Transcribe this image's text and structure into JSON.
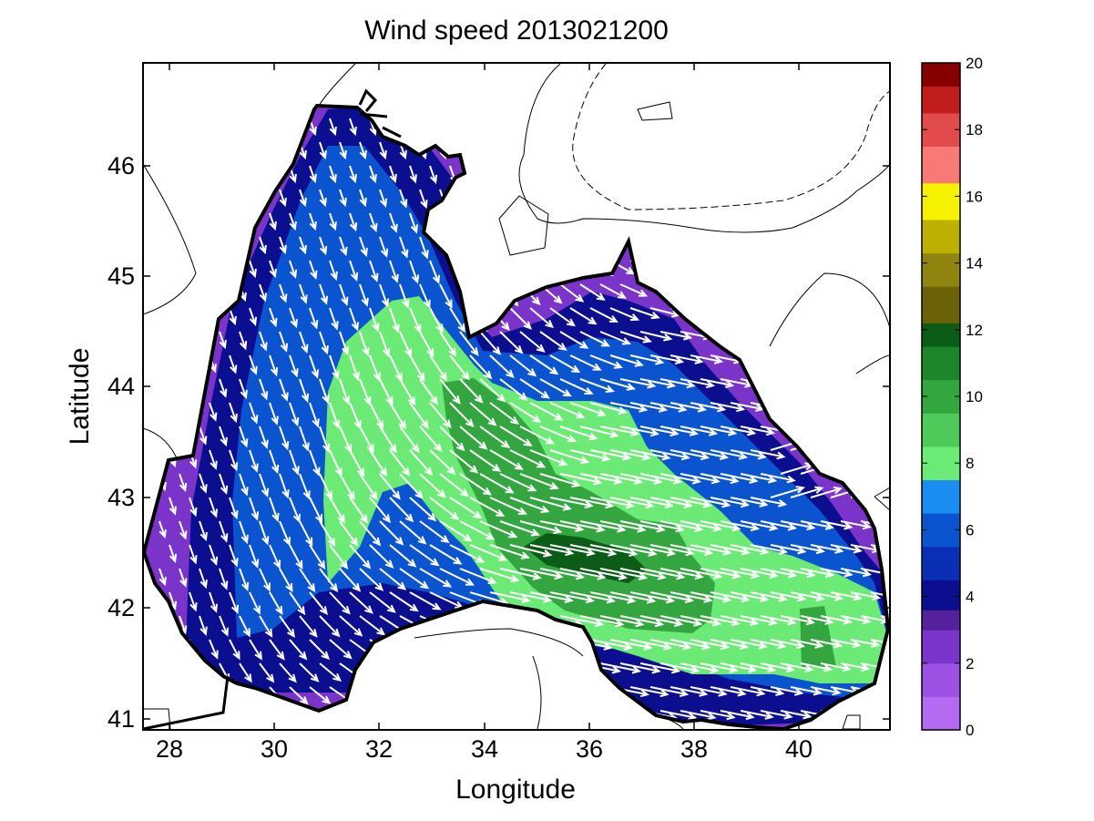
{
  "chart_data": {
    "type": "heatmap",
    "title": "Wind speed 2013021200",
    "xlabel": "Longitude",
    "ylabel": "Latitude",
    "xlim": [
      27.5,
      41.7
    ],
    "ylim": [
      40.9,
      46.95
    ],
    "x_ticks": [
      "28",
      "30",
      "32",
      "34",
      "36",
      "38",
      "40"
    ],
    "y_ticks": [
      "41",
      "42",
      "43",
      "44",
      "45",
      "46"
    ],
    "colorbar": {
      "range": [
        0,
        20
      ],
      "ticks": [
        "0",
        "2",
        "4",
        "6",
        "8",
        "10",
        "12",
        "14",
        "16",
        "18",
        "20"
      ],
      "bands": [
        {
          "from": 0,
          "to": 1,
          "color": "#b46bf2"
        },
        {
          "from": 1,
          "to": 2,
          "color": "#9d52e4"
        },
        {
          "from": 2,
          "to": 3,
          "color": "#7b34c9"
        },
        {
          "from": 3,
          "to": 3.6,
          "color": "#55209b"
        },
        {
          "from": 3.6,
          "to": 4.5,
          "color": "#0b0f8f"
        },
        {
          "from": 4.5,
          "to": 5.5,
          "color": "#0b2fb4"
        },
        {
          "from": 5.5,
          "to": 6.5,
          "color": "#0a55cf"
        },
        {
          "from": 6.5,
          "to": 7.5,
          "color": "#1a8cf2"
        },
        {
          "from": 7.5,
          "to": 8.5,
          "color": "#6cea76"
        },
        {
          "from": 8.5,
          "to": 9.5,
          "color": "#4fca5a"
        },
        {
          "from": 9.5,
          "to": 10.5,
          "color": "#34a640"
        },
        {
          "from": 10.5,
          "to": 11.5,
          "color": "#1e862a"
        },
        {
          "from": 11.5,
          "to": 12.2,
          "color": "#0a5c16"
        },
        {
          "from": 12.2,
          "to": 13.3,
          "color": "#6b6208"
        },
        {
          "from": 13.3,
          "to": 14.3,
          "color": "#8f8410"
        },
        {
          "from": 14.3,
          "to": 15.3,
          "color": "#bdb000"
        },
        {
          "from": 15.3,
          "to": 16.4,
          "color": "#f6f200"
        },
        {
          "from": 16.4,
          "to": 17.5,
          "color": "#f77a76"
        },
        {
          "from": 17.5,
          "to": 18.5,
          "color": "#e14b4b"
        },
        {
          "from": 18.5,
          "to": 19.3,
          "color": "#c01d1d"
        },
        {
          "from": 19.3,
          "to": 20,
          "color": "#860000"
        }
      ]
    },
    "colors": {
      "sea_outline": "#000000",
      "arrow": "#ffffff",
      "contour": "#000000"
    }
  }
}
